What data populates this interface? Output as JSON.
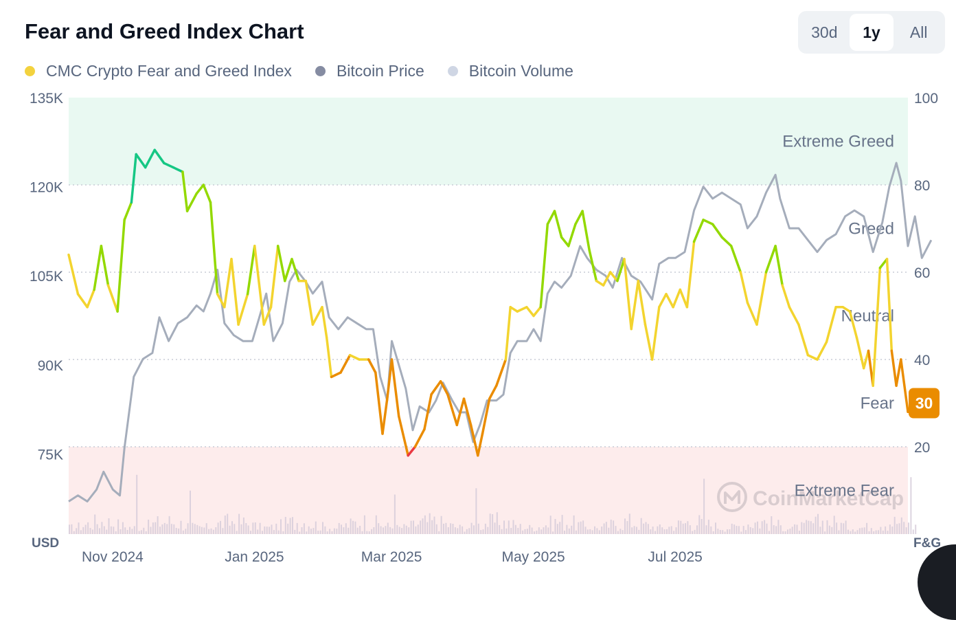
{
  "header": {
    "title": "Fear and Greed Index Chart",
    "ranges": [
      "30d",
      "1y",
      "All"
    ],
    "active_range": "1y"
  },
  "legend": [
    {
      "label": "CMC Crypto Fear and Greed Index",
      "color": "#f3d23e"
    },
    {
      "label": "Bitcoin Price",
      "color": "#858ca2"
    },
    {
      "label": "Bitcoin Volume",
      "color": "#cfd6e4"
    }
  ],
  "colors": {
    "extreme_fear": "#ea3943",
    "fear": "#ea8c00",
    "neutral": "#f3d42f",
    "greed": "#93d900",
    "extreme_greed": "#16c784",
    "price_line": "#a5adbb",
    "volume_bar": "#d6ccda",
    "zone_green": "#e9f9f2",
    "zone_red": "#fdecec"
  },
  "watermark": "CoinMarketCap",
  "chart_data": {
    "type": "line",
    "x_axis": {
      "ticks": [
        "Nov 2024",
        "Jan 2025",
        "Mar 2025",
        "May 2025",
        "Jul 2025"
      ],
      "tick_dates": [
        "2024-11-01",
        "2025-01-01",
        "2025-03-01",
        "2025-05-01",
        "2025-07-01"
      ],
      "range": [
        "2024-10-14",
        "2025-10-10"
      ]
    },
    "left_axis": {
      "unit": "USD",
      "ticks": [
        "75K",
        "90K",
        "105K",
        "120K",
        "135K"
      ],
      "range": [
        61500,
        135000
      ]
    },
    "right_axis": {
      "unit": "F&G",
      "ticks": [
        20,
        40,
        60,
        80,
        100
      ],
      "range": [
        0,
        100
      ]
    },
    "zones": [
      {
        "label": "Extreme Greed",
        "from": 80,
        "to": 100
      },
      {
        "label": "Greed",
        "from": 60,
        "to": 80
      },
      {
        "label": "Neutral",
        "from": 40,
        "to": 60
      },
      {
        "label": "Fear",
        "from": 20,
        "to": 40
      },
      {
        "label": "Extreme Fear",
        "from": 0,
        "to": 20
      }
    ],
    "current_value": 30,
    "series": [
      {
        "name": "CMC Crypto Fear and Greed Index",
        "axis": "right",
        "points": [
          [
            "2024-10-14",
            64
          ],
          [
            "2024-10-18",
            55
          ],
          [
            "2024-10-22",
            52
          ],
          [
            "2024-10-25",
            56
          ],
          [
            "2024-10-28",
            66
          ],
          [
            "2024-10-31",
            57
          ],
          [
            "2024-11-04",
            51
          ],
          [
            "2024-11-07",
            72
          ],
          [
            "2024-11-10",
            76
          ],
          [
            "2024-11-12",
            87
          ],
          [
            "2024-11-16",
            84
          ],
          [
            "2024-11-20",
            88
          ],
          [
            "2024-11-24",
            85
          ],
          [
            "2024-11-28",
            84
          ],
          [
            "2024-12-02",
            83
          ],
          [
            "2024-12-04",
            74
          ],
          [
            "2024-12-08",
            78
          ],
          [
            "2024-12-11",
            80
          ],
          [
            "2024-12-14",
            76
          ],
          [
            "2024-12-17",
            55
          ],
          [
            "2024-12-20",
            52
          ],
          [
            "2024-12-23",
            63
          ],
          [
            "2024-12-26",
            48
          ],
          [
            "2024-12-30",
            55
          ],
          [
            "2025-01-02",
            66
          ],
          [
            "2025-01-06",
            48
          ],
          [
            "2025-01-09",
            52
          ],
          [
            "2025-01-12",
            66
          ],
          [
            "2025-01-15",
            58
          ],
          [
            "2025-01-18",
            63
          ],
          [
            "2025-01-21",
            58
          ],
          [
            "2025-01-24",
            58
          ],
          [
            "2025-01-27",
            48
          ],
          [
            "2025-01-31",
            52
          ],
          [
            "2025-02-02",
            45
          ],
          [
            "2025-02-04",
            36
          ],
          [
            "2025-02-08",
            37
          ],
          [
            "2025-02-12",
            41
          ],
          [
            "2025-02-16",
            40
          ],
          [
            "2025-02-20",
            40
          ],
          [
            "2025-02-23",
            37
          ],
          [
            "2025-02-26",
            23
          ],
          [
            "2025-02-28",
            31
          ],
          [
            "2025-03-02",
            40
          ],
          [
            "2025-03-05",
            27
          ],
          [
            "2025-03-09",
            18
          ],
          [
            "2025-03-12",
            20
          ],
          [
            "2025-03-16",
            24
          ],
          [
            "2025-03-19",
            32
          ],
          [
            "2025-03-23",
            35
          ],
          [
            "2025-03-26",
            32
          ],
          [
            "2025-03-30",
            25
          ],
          [
            "2025-04-02",
            31
          ],
          [
            "2025-04-05",
            25
          ],
          [
            "2025-04-08",
            18
          ],
          [
            "2025-04-10",
            23
          ],
          [
            "2025-04-13",
            31
          ],
          [
            "2025-04-16",
            34
          ],
          [
            "2025-04-20",
            40
          ],
          [
            "2025-04-22",
            52
          ],
          [
            "2025-04-25",
            51
          ],
          [
            "2025-04-29",
            52
          ],
          [
            "2025-05-02",
            50
          ],
          [
            "2025-05-05",
            52
          ],
          [
            "2025-05-08",
            71
          ],
          [
            "2025-05-11",
            74
          ],
          [
            "2025-05-14",
            68
          ],
          [
            "2025-05-17",
            66
          ],
          [
            "2025-05-20",
            71
          ],
          [
            "2025-05-23",
            74
          ],
          [
            "2025-05-26",
            65
          ],
          [
            "2025-05-29",
            58
          ],
          [
            "2025-06-01",
            57
          ],
          [
            "2025-06-04",
            60
          ],
          [
            "2025-06-07",
            58
          ],
          [
            "2025-06-10",
            63
          ],
          [
            "2025-06-13",
            47
          ],
          [
            "2025-06-16",
            58
          ],
          [
            "2025-06-19",
            48
          ],
          [
            "2025-06-22",
            40
          ],
          [
            "2025-06-25",
            52
          ],
          [
            "2025-06-28",
            55
          ],
          [
            "2025-07-01",
            52
          ],
          [
            "2025-07-04",
            56
          ],
          [
            "2025-07-07",
            52
          ],
          [
            "2025-07-10",
            67
          ],
          [
            "2025-07-14",
            72
          ],
          [
            "2025-07-18",
            71
          ],
          [
            "2025-07-22",
            68
          ],
          [
            "2025-07-26",
            66
          ],
          [
            "2025-07-30",
            60
          ],
          [
            "2025-08-02",
            53
          ],
          [
            "2025-08-06",
            48
          ],
          [
            "2025-08-10",
            60
          ],
          [
            "2025-08-14",
            66
          ],
          [
            "2025-08-17",
            57
          ],
          [
            "2025-08-20",
            52
          ],
          [
            "2025-08-24",
            48
          ],
          [
            "2025-08-28",
            41
          ],
          [
            "2025-09-01",
            40
          ],
          [
            "2025-09-05",
            44
          ],
          [
            "2025-09-09",
            52
          ],
          [
            "2025-09-12",
            52
          ],
          [
            "2025-09-15",
            51
          ],
          [
            "2025-09-18",
            45
          ],
          [
            "2025-09-21",
            38
          ],
          [
            "2025-09-23",
            42
          ],
          [
            "2025-09-25",
            34
          ],
          [
            "2025-09-28",
            61
          ],
          [
            "2025-10-01",
            63
          ],
          [
            "2025-10-03",
            42
          ],
          [
            "2025-10-05",
            34
          ],
          [
            "2025-10-07",
            40
          ],
          [
            "2025-10-10",
            28
          ],
          [
            "2025-10-13",
            30
          ]
        ]
      },
      {
        "name": "Bitcoin Price",
        "axis": "left",
        "points": [
          [
            "2024-10-14",
            67000
          ],
          [
            "2024-10-18",
            68000
          ],
          [
            "2024-10-22",
            67000
          ],
          [
            "2024-10-26",
            69000
          ],
          [
            "2024-10-29",
            72000
          ],
          [
            "2024-11-02",
            69000
          ],
          [
            "2024-11-05",
            68000
          ],
          [
            "2024-11-07",
            76000
          ],
          [
            "2024-11-11",
            88000
          ],
          [
            "2024-11-15",
            91000
          ],
          [
            "2024-11-19",
            92000
          ],
          [
            "2024-11-22",
            98000
          ],
          [
            "2024-11-26",
            94000
          ],
          [
            "2024-11-30",
            97000
          ],
          [
            "2024-12-04",
            98000
          ],
          [
            "2024-12-08",
            100000
          ],
          [
            "2024-12-11",
            99000
          ],
          [
            "2024-12-14",
            102000
          ],
          [
            "2024-12-17",
            106000
          ],
          [
            "2024-12-20",
            97000
          ],
          [
            "2024-12-24",
            95000
          ],
          [
            "2024-12-28",
            94000
          ],
          [
            "2025-01-01",
            94000
          ],
          [
            "2025-01-04",
            98000
          ],
          [
            "2025-01-07",
            102000
          ],
          [
            "2025-01-10",
            94000
          ],
          [
            "2025-01-14",
            97000
          ],
          [
            "2025-01-17",
            104000
          ],
          [
            "2025-01-20",
            106000
          ],
          [
            "2025-01-24",
            104000
          ],
          [
            "2025-01-27",
            102000
          ],
          [
            "2025-01-31",
            104000
          ],
          [
            "2025-02-03",
            98000
          ],
          [
            "2025-02-07",
            96000
          ],
          [
            "2025-02-11",
            98000
          ],
          [
            "2025-02-15",
            97000
          ],
          [
            "2025-02-19",
            96000
          ],
          [
            "2025-02-22",
            96000
          ],
          [
            "2025-02-25",
            88000
          ],
          [
            "2025-02-28",
            84000
          ],
          [
            "2025-03-02",
            94000
          ],
          [
            "2025-03-05",
            90000
          ],
          [
            "2025-03-08",
            86000
          ],
          [
            "2025-03-11",
            79000
          ],
          [
            "2025-03-14",
            83000
          ],
          [
            "2025-03-18",
            82000
          ],
          [
            "2025-03-21",
            84000
          ],
          [
            "2025-03-24",
            87000
          ],
          [
            "2025-03-28",
            84000
          ],
          [
            "2025-03-31",
            82000
          ],
          [
            "2025-04-03",
            82000
          ],
          [
            "2025-04-06",
            77000
          ],
          [
            "2025-04-09",
            80000
          ],
          [
            "2025-04-12",
            84000
          ],
          [
            "2025-04-16",
            84000
          ],
          [
            "2025-04-19",
            85000
          ],
          [
            "2025-04-22",
            92000
          ],
          [
            "2025-04-25",
            94000
          ],
          [
            "2025-04-29",
            94000
          ],
          [
            "2025-05-02",
            96000
          ],
          [
            "2025-05-05",
            94000
          ],
          [
            "2025-05-08",
            102000
          ],
          [
            "2025-05-11",
            104000
          ],
          [
            "2025-05-14",
            103000
          ],
          [
            "2025-05-18",
            105000
          ],
          [
            "2025-05-22",
            110000
          ],
          [
            "2025-05-25",
            108000
          ],
          [
            "2025-05-29",
            106000
          ],
          [
            "2025-06-02",
            105000
          ],
          [
            "2025-06-05",
            103000
          ],
          [
            "2025-06-09",
            108000
          ],
          [
            "2025-06-13",
            105000
          ],
          [
            "2025-06-17",
            104000
          ],
          [
            "2025-06-22",
            101000
          ],
          [
            "2025-06-25",
            107000
          ],
          [
            "2025-06-29",
            108000
          ],
          [
            "2025-07-02",
            108000
          ],
          [
            "2025-07-06",
            109000
          ],
          [
            "2025-07-10",
            116000
          ],
          [
            "2025-07-14",
            120000
          ],
          [
            "2025-07-18",
            118000
          ],
          [
            "2025-07-22",
            119000
          ],
          [
            "2025-07-26",
            118000
          ],
          [
            "2025-07-30",
            117000
          ],
          [
            "2025-08-02",
            113000
          ],
          [
            "2025-08-06",
            115000
          ],
          [
            "2025-08-10",
            119000
          ],
          [
            "2025-08-14",
            122000
          ],
          [
            "2025-08-16",
            118000
          ],
          [
            "2025-08-20",
            113000
          ],
          [
            "2025-08-24",
            113000
          ],
          [
            "2025-08-28",
            111000
          ],
          [
            "2025-09-01",
            109000
          ],
          [
            "2025-09-05",
            111000
          ],
          [
            "2025-09-09",
            112000
          ],
          [
            "2025-09-13",
            115000
          ],
          [
            "2025-09-17",
            116000
          ],
          [
            "2025-09-21",
            115000
          ],
          [
            "2025-09-25",
            109000
          ],
          [
            "2025-09-29",
            114000
          ],
          [
            "2025-10-02",
            120000
          ],
          [
            "2025-10-05",
            124000
          ],
          [
            "2025-10-07",
            121000
          ],
          [
            "2025-10-10",
            110000
          ],
          [
            "2025-10-13",
            115000
          ],
          [
            "2025-10-16",
            108000
          ],
          [
            "2025-10-20",
            111000
          ]
        ]
      },
      {
        "name": "Bitcoin Volume",
        "axis": "volume",
        "base": 3,
        "amplitude": 25,
        "spikes": [
          [
            "2024-11-12",
            75
          ],
          [
            "2024-12-05",
            55
          ],
          [
            "2025-03-03",
            50
          ],
          [
            "2025-04-07",
            58
          ],
          [
            "2025-07-14",
            70
          ],
          [
            "2025-10-11",
            72
          ]
        ]
      }
    ]
  }
}
